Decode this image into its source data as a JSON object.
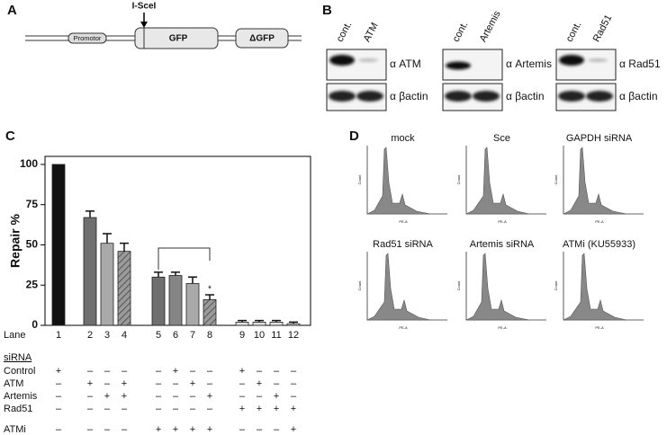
{
  "panel_labels": [
    "A",
    "B",
    "C",
    "D"
  ],
  "construct": {
    "promoter": "Promotor",
    "site": "I-SceI",
    "gene": "GFP",
    "truncated": "ΔGFP"
  },
  "blots": [
    {
      "lanes": [
        "cont.",
        "ATM"
      ],
      "target": "α ATM",
      "loading": "α βactin"
    },
    {
      "lanes": [
        "cont.",
        "Artemis"
      ],
      "target": "α Artemis",
      "loading": "α βactin"
    },
    {
      "lanes": [
        "cont.",
        "Rad51"
      ],
      "target": "α Rad51",
      "loading": "α βactin"
    }
  ],
  "chart_data": {
    "type": "bar",
    "ylabel": "Repair %",
    "xlabel": "Lane",
    "categories": [
      "1",
      "2",
      "3",
      "4",
      "5",
      "6",
      "7",
      "8",
      "9",
      "10",
      "11",
      "12"
    ],
    "values": [
      100,
      67,
      51,
      46,
      30,
      31,
      26,
      16,
      2,
      2,
      2,
      1
    ],
    "errors": [
      0,
      4,
      6,
      5,
      3,
      2,
      4,
      3,
      1,
      1,
      1,
      1
    ],
    "colors": [
      "#111111",
      "#6f6f6f",
      "#a9a9a9",
      "#888888",
      "#6f6f6f",
      "#858585",
      "#a9a9a9",
      "#888888",
      "#e0e0e0",
      "#e0e0e0",
      "#e0e0e0",
      "#e0e0e0"
    ],
    "hatch": [
      false,
      false,
      false,
      true,
      false,
      false,
      false,
      true,
      false,
      false,
      false,
      false
    ],
    "annotation": "*",
    "ylim": [
      0,
      105
    ],
    "yticks": [
      0,
      25,
      50,
      75,
      100
    ]
  },
  "treatment_table": {
    "title": "siRNA",
    "rows": [
      {
        "label": "Control",
        "marks": [
          "+",
          "–",
          "–",
          "–",
          "–",
          "+",
          "–",
          "–",
          "+",
          "–",
          "–",
          "–"
        ]
      },
      {
        "label": "ATM",
        "marks": [
          "–",
          "+",
          "–",
          "+",
          "–",
          "–",
          "+",
          "–",
          "–",
          "+",
          "–",
          "–"
        ]
      },
      {
        "label": "Artemis",
        "marks": [
          "–",
          "–",
          "+",
          "+",
          "–",
          "–",
          "–",
          "+",
          "–",
          "–",
          "+",
          "–"
        ]
      },
      {
        "label": "Rad51",
        "marks": [
          "–",
          "–",
          "–",
          "–",
          "–",
          "–",
          "–",
          "–",
          "+",
          "+",
          "+",
          "+"
        ]
      },
      {
        "label": "ATMi",
        "marks": [
          "–",
          "–",
          "–",
          "–",
          "+",
          "+",
          "+",
          "+",
          "–",
          "–",
          "–",
          "+"
        ]
      }
    ]
  },
  "histograms": {
    "titles": [
      "mock",
      "Sce",
      "GAPDH siRNA",
      "Rad51 siRNA",
      "Artemis siRNA",
      "ATMi (KU55933)"
    ],
    "x_label": "PE-A",
    "y_label": "Count"
  }
}
